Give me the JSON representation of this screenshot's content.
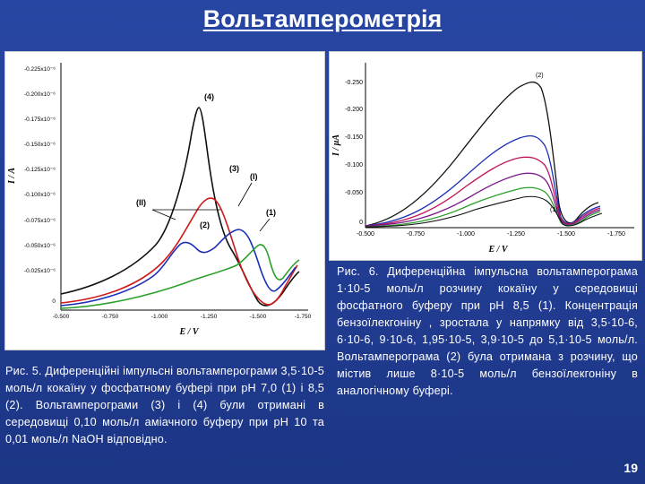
{
  "slide": {
    "title": "Вольтамперометрія",
    "page_number": "19"
  },
  "figure1": {
    "caption": "Рис. 5. Диференційні імпульсні вольтамперограми 3,5·10-5 моль/л кокаїну у фосфатному буфері при pH 7,0 (1) і 8,5 (2). Вольтамперограми (3) і (4) були отримані в середовищі 0,10 моль/л аміачного буферу при pH 10 та 0,01 моль/л NaOH відповідно.",
    "y_axis_label": "I / A",
    "x_axis_label": "E / V",
    "y_ticks": [
      "-0.225x10⁻⁶",
      "-0.200x10⁻⁶",
      "-0.175x10⁻⁶",
      "-0.150x10⁻⁶",
      "-0.125x10⁻⁶",
      "-0.100x10⁻⁶",
      "-0.075x10⁻⁶",
      "-0.050x10⁻⁶",
      "-0.025x10⁻⁶",
      "0"
    ],
    "x_ticks": [
      "-0.500",
      "-0.750",
      "-1.000",
      "-1.250",
      "-1.500",
      "-1.750"
    ],
    "labels": [
      "(4)",
      "(3)",
      "(II)",
      "(I)",
      "(2)",
      "(1)"
    ],
    "colors": {
      "curve1": "#2aa02a",
      "curve2": "#1a2fb8",
      "curve3": "#d01818",
      "curve4": "#111111"
    }
  },
  "figure2": {
    "caption": "Рис. 6. Диференційна імпульсна вольтамперограма 1·10-5 моль/л розчину кокаїну у середовищі фосфатного буферу при pH 8,5 (1). Концентрація бензоїлекгоніну , зростала у напрямку від 3,5·10-6, 6·10-6, 9·10-6, 1,95·10-5, 3,9·10-5 до 5,1·10-5 моль/л. Вольтамперограма (2) була отримана з розчину, що містив лише 8·10-5 моль/л бензоїлекгоніну в аналогічному буфері.",
    "y_axis_label": "I / µA",
    "x_axis_label": "E / V",
    "y_ticks": [
      "-0.250",
      "-0.200",
      "-0.150",
      "-0.100",
      "-0.050",
      "0"
    ],
    "x_ticks": [
      "-0.500",
      "-0.750",
      "-1.000",
      "-1.250",
      "-1.500",
      "-1.750"
    ],
    "labels": [
      "(2)",
      "(1)"
    ]
  }
}
